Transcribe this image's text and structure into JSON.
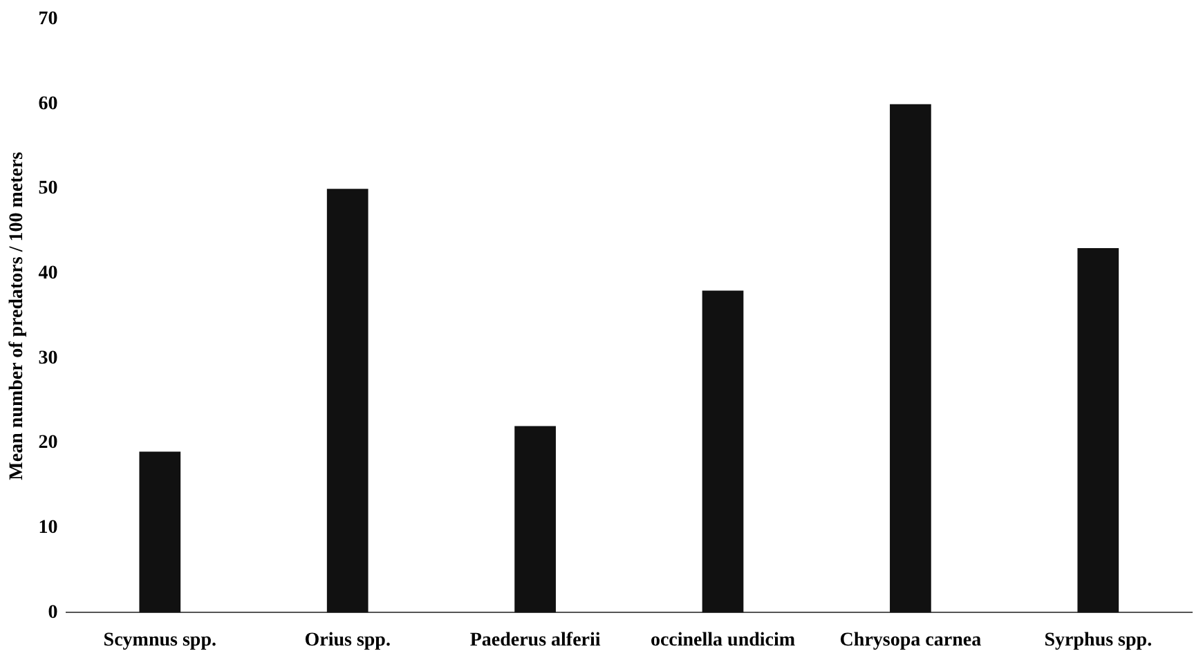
{
  "chart_data": {
    "type": "bar",
    "ylabel": "Mean number of predators / 100 meters",
    "categories": [
      "Scymnus spp.",
      "Orius spp.",
      "Paederus alferii",
      "occinella undicim",
      "Chrysopa carnea",
      "Syrphus spp."
    ],
    "values": [
      19,
      50,
      22,
      38,
      60,
      43
    ],
    "color": "#111111",
    "ylim": [
      0,
      70
    ],
    "yticks": [
      0,
      10,
      20,
      30,
      40,
      50,
      60,
      70
    ],
    "grid": false,
    "legend": false
  }
}
